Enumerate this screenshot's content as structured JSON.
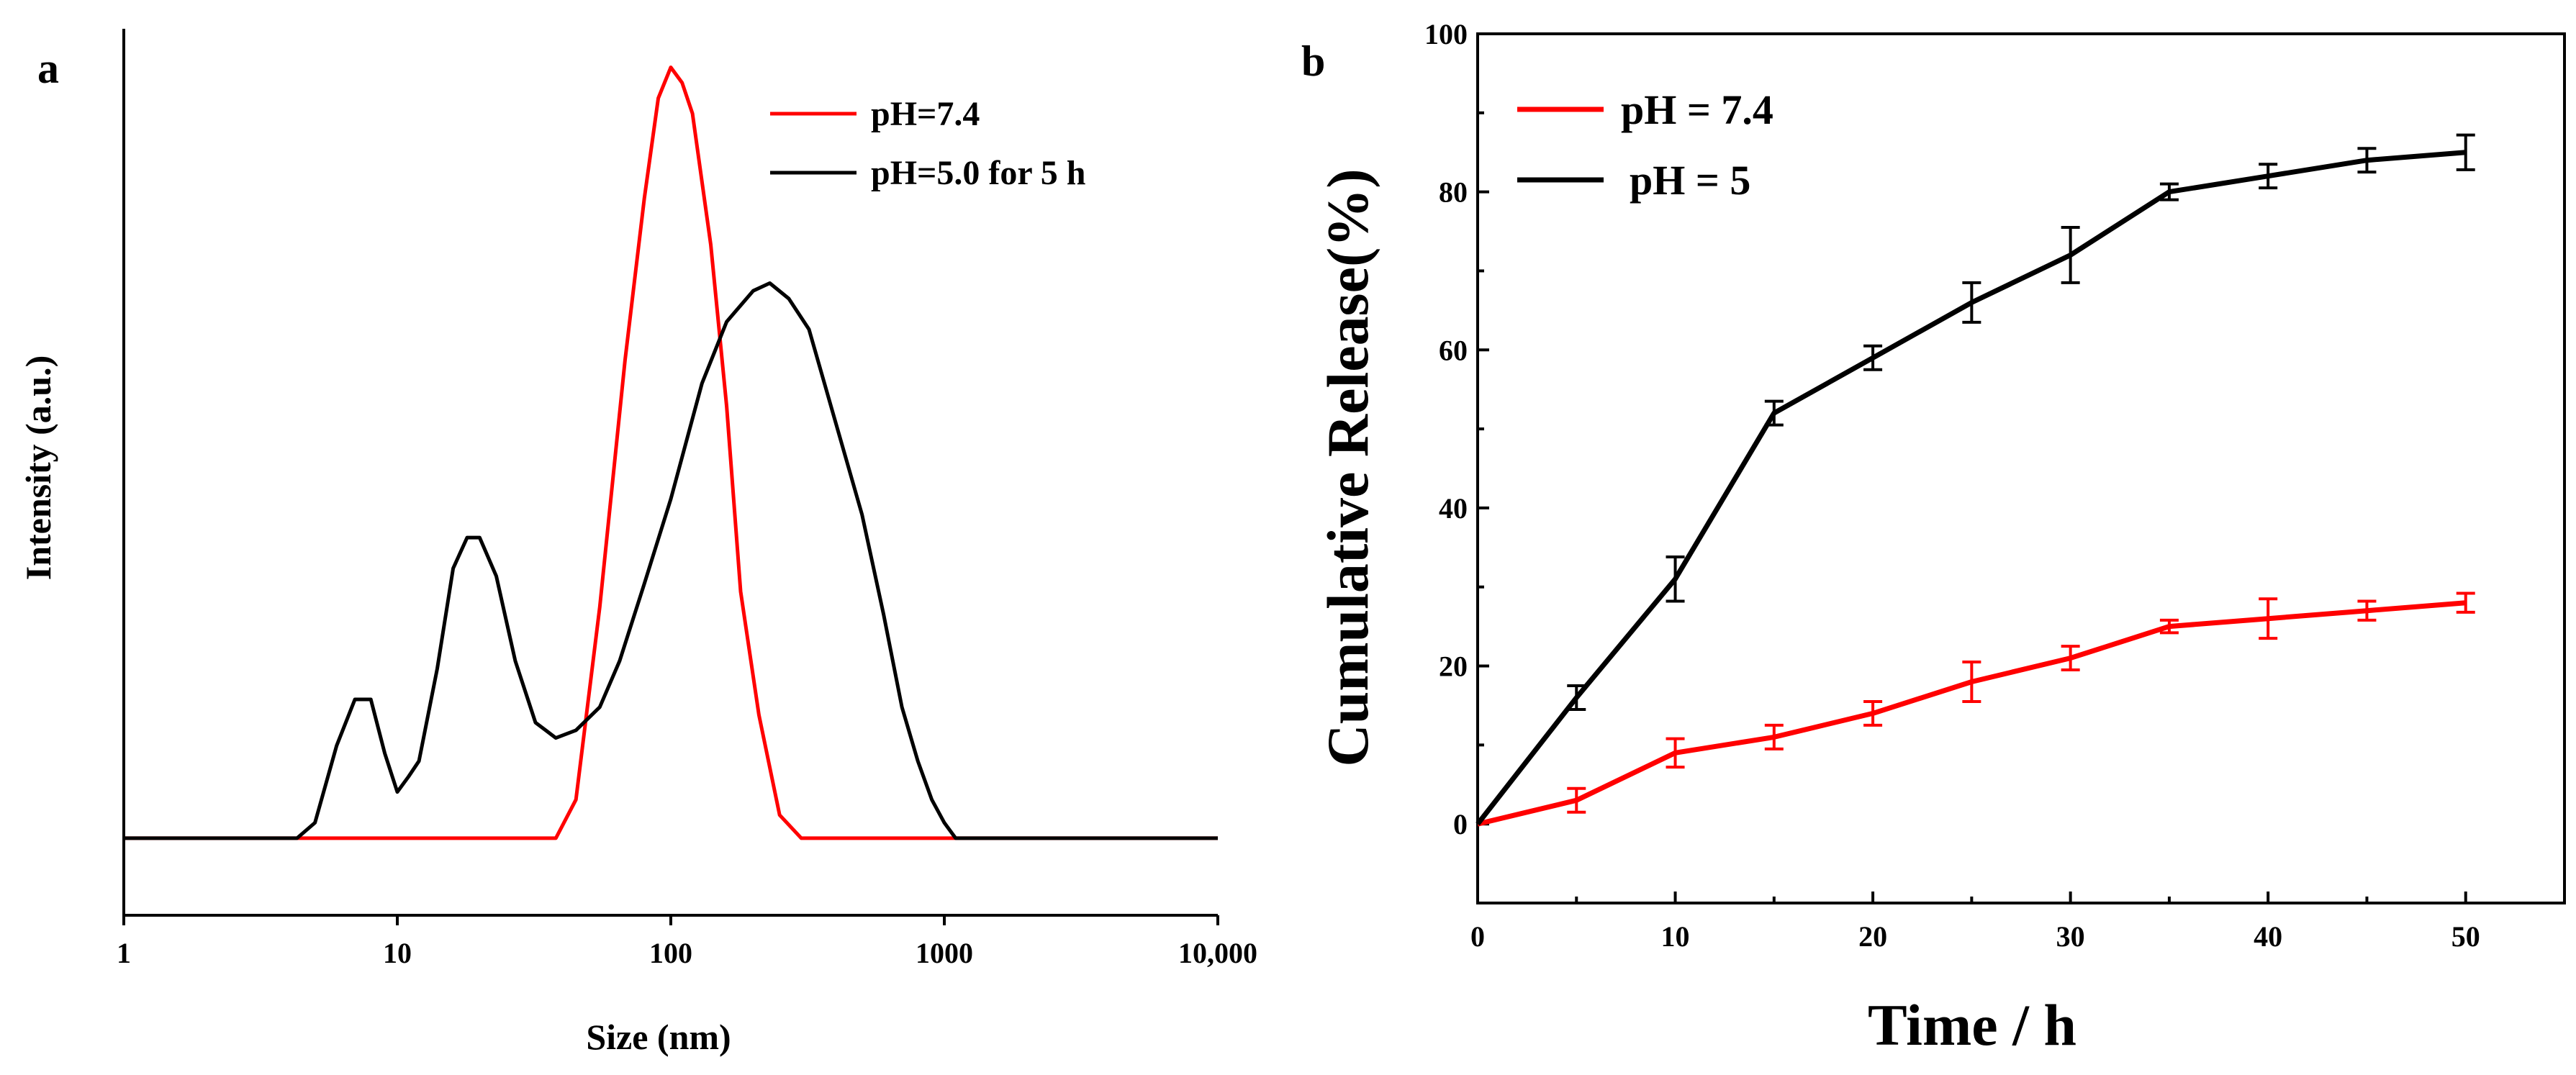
{
  "chart_data": [
    {
      "panel_label": "a",
      "type": "line",
      "xscale": "log",
      "xlabel": "Size (nm)",
      "ylabel": "Intensity (a.u.)",
      "xlim": [
        1,
        10000
      ],
      "ylim": [
        -0.1,
        1.05
      ],
      "yticks_shown": false,
      "xticks": [
        1,
        10,
        100,
        1000,
        10000
      ],
      "xtick_labels": [
        "1",
        "10",
        "100",
        "1000",
        "10,000"
      ],
      "legend": "top-right",
      "series": [
        {
          "name": "pH=7.4",
          "color": "#ff0000",
          "x": [
            1,
            38,
            45,
            55,
            68,
            80,
            90,
            100,
            110,
            120,
            140,
            160,
            180,
            210,
            250,
            300,
            10000
          ],
          "y": [
            0,
            0,
            0.05,
            0.3,
            0.62,
            0.83,
            0.96,
            1.0,
            0.98,
            0.94,
            0.77,
            0.56,
            0.32,
            0.16,
            0.03,
            0,
            0
          ]
        },
        {
          "name": "pH=5.0 for 5 h",
          "color": "#000000",
          "x": [
            1,
            4.3,
            5,
            6,
            7,
            8,
            9,
            10,
            11,
            12,
            14,
            16,
            18,
            20,
            23,
            27,
            32,
            38,
            45,
            55,
            65,
            80,
            100,
            130,
            160,
            200,
            230,
            270,
            320,
            400,
            500,
            600,
            700,
            800,
            900,
            1000,
            1100,
            10000
          ],
          "y": [
            0,
            0,
            0.02,
            0.12,
            0.18,
            0.18,
            0.11,
            0.06,
            0.08,
            0.1,
            0.22,
            0.35,
            0.39,
            0.39,
            0.34,
            0.23,
            0.15,
            0.13,
            0.14,
            0.17,
            0.23,
            0.33,
            0.44,
            0.59,
            0.67,
            0.71,
            0.72,
            0.7,
            0.66,
            0.54,
            0.42,
            0.29,
            0.17,
            0.1,
            0.05,
            0.02,
            0,
            0
          ]
        }
      ]
    },
    {
      "panel_label": "b",
      "type": "line",
      "xlabel": "Time / h",
      "ylabel": "Cumulative Release(%)",
      "xlim": [
        0,
        55
      ],
      "ylim": [
        -10,
        100
      ],
      "xticks": [
        0,
        10,
        20,
        30,
        40,
        50
      ],
      "yticks": [
        0,
        20,
        40,
        60,
        80,
        100
      ],
      "legend": "top-left",
      "series": [
        {
          "name": "pH = 7.4",
          "color": "#ff0000",
          "x": [
            0,
            5,
            10,
            15,
            20,
            25,
            30,
            35,
            40,
            45,
            50
          ],
          "y": [
            0,
            3,
            9,
            11,
            14,
            18,
            21,
            25,
            26,
            27,
            28
          ],
          "err": [
            0,
            1.5,
            1.8,
            1.5,
            1.5,
            2.5,
            1.5,
            0.8,
            2.5,
            1.2,
            1.2
          ]
        },
        {
          "name": "pH = 5",
          "color": "#000000",
          "x": [
            0,
            5,
            10,
            15,
            20,
            25,
            30,
            35,
            40,
            45,
            50
          ],
          "y": [
            0,
            16,
            31,
            52,
            59,
            66,
            72,
            80,
            82,
            84,
            85
          ],
          "err": [
            0,
            1.5,
            2.8,
            1.5,
            1.5,
            2.5,
            3.5,
            1,
            1.5,
            1.5,
            2.2
          ]
        }
      ]
    }
  ]
}
